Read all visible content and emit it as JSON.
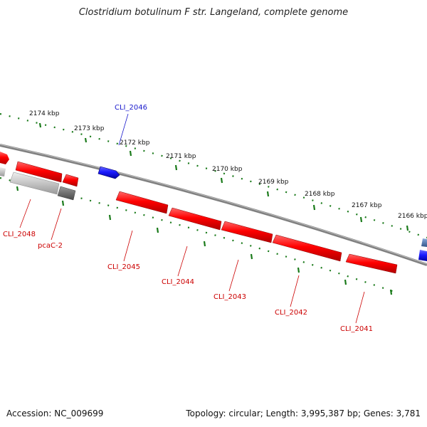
{
  "title": "Clostridium botulinum F str. Langeland, complete genome",
  "accession_label": "Accession: NC_009699",
  "summary": "Topology: circular; Length: 3,995,387 bp; Genes: 3,781",
  "ticks": [
    "2174 kbp",
    "2173 kbp",
    "2172 kbp",
    "2171 kbp",
    "2170 kbp",
    "2169 kbp",
    "2168 kbp",
    "2167 kbp",
    "2166 kbp"
  ],
  "genes": {
    "cli_2046": "CLI_2046",
    "cli_2048": "CLI_2048",
    "pcac_2": "pcaC-2",
    "cli_2045": "CLI_2045",
    "cli_2044": "CLI_2044",
    "cli_2043": "CLI_2043",
    "cli_2042": "CLI_2042",
    "cli_2041": "CLI_2041"
  },
  "colors": {
    "forward_gene": "#1a1aee",
    "reverse_gene": "#ee0000",
    "pseudo_gene": "#bbbbbb",
    "tick": "#1a7a1a",
    "backbone": "#808080",
    "label_forward": "#1a1acc",
    "label_reverse": "#cc0000"
  }
}
